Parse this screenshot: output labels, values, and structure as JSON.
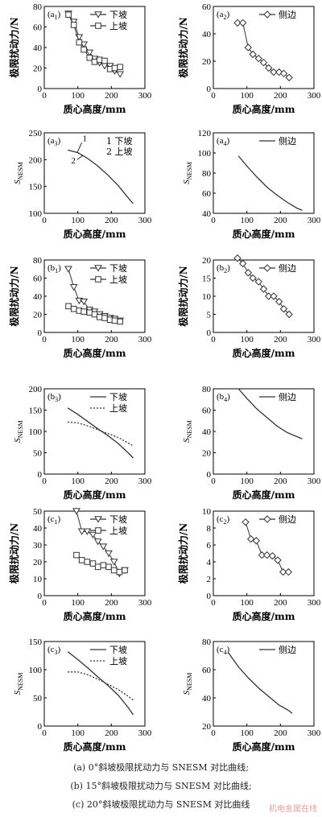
{
  "colors": {
    "line": "#333333",
    "axis": "#000000",
    "watermark": "#e8a0a0"
  },
  "marker_names": {
    "down": "triangle-down",
    "up": "square",
    "side": "diamond"
  },
  "captions": [
    "(a) 0°斜坡极限扰动力与 SNESM 对比曲线;",
    "(b) 15°斜坡极限扰动力与 SNESM 对比曲线;",
    "(c) 20°斜坡极限扰动力与 SNESM 对比曲线"
  ],
  "watermark": "机电金属在线",
  "chart_data": [
    {
      "id": "a1",
      "type": "line",
      "panel_label": "(a1)",
      "xlabel": "质心高度/mm",
      "ylabel": "极限扰动力/N",
      "xlim": [
        0,
        300
      ],
      "ylim": [
        0,
        80
      ],
      "xticks": [
        0,
        100,
        200,
        300
      ],
      "yticks": [
        0,
        20,
        40,
        60,
        80
      ],
      "legend": "top-right",
      "series": [
        {
          "name": "下坡",
          "marker": "triangle-down",
          "dash": false,
          "x": [
            72,
            88,
            104,
            118,
            135,
            150,
            165,
            180,
            196,
            210,
            226
          ],
          "y": [
            73,
            65,
            50,
            43,
            35,
            29,
            25,
            22,
            22,
            17,
            14
          ]
        },
        {
          "name": "上坡",
          "marker": "square",
          "dash": false,
          "x": [
            72,
            88,
            104,
            118,
            135,
            150,
            165,
            180,
            196,
            210,
            226
          ],
          "y": [
            72,
            62,
            45,
            38,
            30,
            26,
            28,
            27,
            19,
            20,
            21
          ]
        }
      ]
    },
    {
      "id": "a2",
      "type": "line",
      "panel_label": "(a2)",
      "xlabel": "质心高度/mm",
      "ylabel": "极限扰动力/N",
      "xlim": [
        0,
        300
      ],
      "ylim": [
        0,
        60
      ],
      "xticks": [
        0,
        100,
        200,
        300
      ],
      "yticks": [
        0,
        20,
        40,
        60
      ],
      "legend": "top-right",
      "series": [
        {
          "name": "侧边",
          "marker": "diamond",
          "dash": false,
          "x": [
            72,
            88,
            104,
            118,
            135,
            150,
            165,
            180,
            196,
            210,
            226
          ],
          "y": [
            48,
            48,
            30,
            25,
            22,
            19,
            15,
            12,
            12,
            11,
            8
          ]
        }
      ]
    },
    {
      "id": "a3",
      "type": "line",
      "panel_label": "(a3)",
      "xlabel": "质心高度/mm",
      "ylabel": "SNESM",
      "xlim": [
        0,
        300
      ],
      "ylim": [
        100,
        250
      ],
      "xticks": [
        0,
        100,
        200,
        300
      ],
      "yticks": [
        100,
        150,
        200,
        250
      ],
      "legend": "top-right",
      "legend_items": [
        "1 下坡",
        "2 上坡"
      ],
      "annotations": [
        "1",
        "2"
      ],
      "series": [
        {
          "name": "下坡",
          "marker": "none",
          "dash": false,
          "x": [
            70,
            100,
            130,
            160,
            190,
            220,
            250,
            265
          ],
          "y": [
            218,
            213,
            202,
            188,
            171,
            152,
            129,
            118
          ]
        }
      ]
    },
    {
      "id": "a4",
      "type": "line",
      "panel_label": "(a4)",
      "xlabel": "质心高度/mm",
      "ylabel": "SNESM",
      "xlim": [
        0,
        300
      ],
      "ylim": [
        40,
        120
      ],
      "xticks": [
        0,
        100,
        200,
        300
      ],
      "yticks": [
        40,
        60,
        80,
        100,
        120
      ],
      "legend": "top-right",
      "series": [
        {
          "name": "侧边",
          "marker": "none",
          "dash": false,
          "x": [
            75,
            100,
            130,
            160,
            190,
            220,
            250,
            265
          ],
          "y": [
            97,
            87,
            76,
            66,
            58,
            51,
            45,
            43
          ]
        }
      ]
    },
    {
      "id": "b1",
      "type": "line",
      "panel_label": "(b1)",
      "xlabel": "质心高度/mm",
      "ylabel": "极限扰动力/N",
      "xlim": [
        0,
        300
      ],
      "ylim": [
        0,
        80
      ],
      "xticks": [
        0,
        100,
        200,
        300
      ],
      "yticks": [
        0,
        20,
        40,
        60,
        80
      ],
      "legend": "top-right",
      "series": [
        {
          "name": "下坡",
          "marker": "triangle-down",
          "dash": false,
          "x": [
            72,
            88,
            104,
            118,
            135,
            150,
            165,
            180,
            196,
            210,
            226
          ],
          "y": [
            70,
            50,
            35,
            34,
            25,
            23,
            20,
            18,
            16,
            15,
            13
          ]
        },
        {
          "name": "上坡",
          "marker": "square",
          "dash": false,
          "x": [
            72,
            88,
            104,
            118,
            135,
            150,
            165,
            180,
            196,
            210,
            226
          ],
          "y": [
            29,
            26,
            24,
            23,
            22,
            20,
            17,
            16,
            14,
            13,
            12
          ]
        }
      ]
    },
    {
      "id": "b2",
      "type": "line",
      "panel_label": "(b2)",
      "xlabel": "质心高度/mm",
      "ylabel": "极限扰动力/N",
      "xlim": [
        0,
        300
      ],
      "ylim": [
        0,
        20
      ],
      "xticks": [
        0,
        100,
        200,
        300
      ],
      "yticks": [
        0,
        5,
        10,
        15,
        20
      ],
      "legend": "top-right",
      "series": [
        {
          "name": "侧边",
          "marker": "diamond",
          "dash": false,
          "x": [
            72,
            88,
            104,
            118,
            135,
            150,
            165,
            180,
            196,
            210,
            226
          ],
          "y": [
            20.5,
            19,
            16.5,
            15,
            14,
            12,
            10,
            10,
            8.5,
            6.5,
            5
          ]
        }
      ]
    },
    {
      "id": "b3",
      "type": "line",
      "panel_label": "(b3)",
      "xlabel": "质心高度/mm",
      "ylabel": "SNESM",
      "xlim": [
        0,
        300
      ],
      "ylim": [
        0,
        200
      ],
      "xticks": [
        0,
        100,
        200,
        300
      ],
      "yticks": [
        0,
        50,
        100,
        150,
        200
      ],
      "legend": "top-right",
      "series": [
        {
          "name": "下坡",
          "marker": "none",
          "dash": false,
          "x": [
            70,
            100,
            130,
            160,
            190,
            220,
            250,
            265
          ],
          "y": [
            155,
            140,
            123,
            106,
            90,
            72,
            50,
            38
          ]
        },
        {
          "name": "上坡",
          "marker": "none",
          "dash": true,
          "x": [
            70,
            100,
            130,
            160,
            190,
            220,
            250,
            265
          ],
          "y": [
            122,
            120,
            113,
            104,
            95,
            86,
            73,
            66
          ]
        }
      ]
    },
    {
      "id": "b4",
      "type": "line",
      "panel_label": "(b4)",
      "xlabel": "质心高度/mm",
      "ylabel": "SNESM",
      "xlim": [
        0,
        300
      ],
      "ylim": [
        0,
        80
      ],
      "xticks": [
        0,
        100,
        200,
        300
      ],
      "yticks": [
        0,
        20,
        40,
        60,
        80
      ],
      "legend": "top-right",
      "series": [
        {
          "name": "侧边",
          "marker": "none",
          "dash": false,
          "x": [
            75,
            100,
            130,
            160,
            190,
            220,
            250,
            265
          ],
          "y": [
            80,
            71,
            61,
            53,
            45,
            39,
            35,
            33
          ]
        }
      ]
    },
    {
      "id": "c1",
      "type": "line",
      "panel_label": "(c1)",
      "xlabel": "质心高度/mm",
      "ylabel": "极限扰动力/N",
      "xlim": [
        0,
        300
      ],
      "ylim": [
        0,
        50
      ],
      "xticks": [
        0,
        100,
        200,
        300
      ],
      "yticks": [
        0,
        10,
        20,
        30,
        40,
        50
      ],
      "legend": "top-right",
      "series": [
        {
          "name": "下坡",
          "marker": "triangle-down",
          "dash": false,
          "x": [
            96,
            112,
            128,
            145,
            160,
            176,
            192,
            208,
            224,
            240
          ],
          "y": [
            50,
            38,
            38,
            36,
            32,
            29,
            25,
            20,
            13,
            15
          ]
        },
        {
          "name": "上坡",
          "marker": "square",
          "dash": false,
          "x": [
            96,
            112,
            128,
            145,
            160,
            176,
            192,
            208,
            224,
            240
          ],
          "y": [
            24,
            21,
            20,
            19,
            17,
            18,
            17,
            15,
            14,
            15
          ]
        }
      ]
    },
    {
      "id": "c2",
      "type": "line",
      "panel_label": "(c2)",
      "xlabel": "质心高度/mm",
      "ylabel": "极限扰动力/N",
      "xlim": [
        0,
        300
      ],
      "ylim": [
        0,
        10
      ],
      "xticks": [
        0,
        100,
        200,
        300
      ],
      "yticks": [
        0,
        2,
        4,
        6,
        8,
        10
      ],
      "legend": "top-right",
      "series": [
        {
          "name": "侧边",
          "marker": "diamond",
          "dash": false,
          "x": [
            96,
            112,
            128,
            145,
            160,
            176,
            192,
            208,
            224
          ],
          "y": [
            8.7,
            6.7,
            6.5,
            4.8,
            4.8,
            4.7,
            4.2,
            2.8,
            2.8
          ]
        }
      ]
    },
    {
      "id": "c3",
      "type": "line",
      "panel_label": "(c3)",
      "xlabel": "质心高度/mm",
      "ylabel": "SNESM",
      "xlim": [
        0,
        300
      ],
      "ylim": [
        0,
        150
      ],
      "xticks": [
        0,
        100,
        200,
        300
      ],
      "yticks": [
        0,
        50,
        100,
        150
      ],
      "legend": "top-right",
      "series": [
        {
          "name": "下坡",
          "marker": "none",
          "dash": false,
          "x": [
            70,
            100,
            130,
            160,
            190,
            220,
            250,
            265
          ],
          "y": [
            132,
            118,
            103,
            87,
            72,
            55,
            33,
            20
          ]
        },
        {
          "name": "上坡",
          "marker": "none",
          "dash": true,
          "x": [
            70,
            100,
            130,
            160,
            190,
            220,
            250,
            265
          ],
          "y": [
            96,
            96,
            91,
            83,
            74,
            65,
            53,
            46
          ]
        }
      ]
    },
    {
      "id": "c4",
      "type": "line",
      "panel_label": "(c4)",
      "xlabel": "质心高度/mm",
      "ylabel": "SNESM",
      "xlim": [
        0,
        300
      ],
      "ylim": [
        20,
        80
      ],
      "xticks": [
        0,
        100,
        200,
        300
      ],
      "yticks": [
        20,
        40,
        60,
        80
      ],
      "legend": "top-right",
      "series": [
        {
          "name": "侧边",
          "marker": "none",
          "dash": false,
          "x": [
            45,
            75,
            105,
            135,
            165,
            195,
            225,
            235
          ],
          "y": [
            72,
            62,
            54,
            47,
            41,
            35,
            31,
            29
          ]
        }
      ]
    }
  ]
}
